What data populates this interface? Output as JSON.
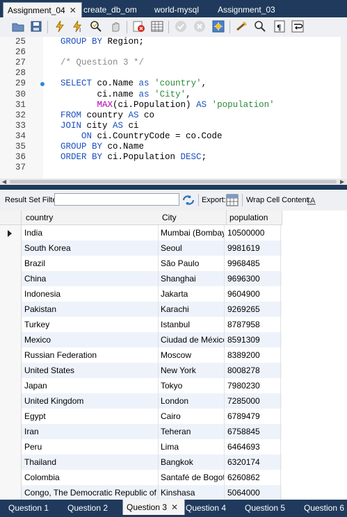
{
  "tabs": [
    {
      "label": "Assignment_04",
      "active": true,
      "closable": true
    },
    {
      "label": "create_db_om"
    },
    {
      "label": "world-mysql"
    },
    {
      "label": "Assignment_03"
    }
  ],
  "toolbar": {
    "icons": [
      "open-folder-icon",
      "save-icon",
      "execute-icon",
      "execute-current-icon",
      "explain-icon",
      "stop-icon",
      "toggle-error-icon",
      "result-grid-icon",
      "commit-icon",
      "rollback-icon",
      "autocommit-icon",
      "beautify-icon",
      "find-icon",
      "invisible-chars-icon",
      "word-wrap-icon"
    ]
  },
  "editor": {
    "lines": [
      {
        "n": "25",
        "tokens": [
          {
            "t": "GROUP BY",
            "c": "kw"
          },
          {
            "t": " Region;"
          }
        ]
      },
      {
        "n": "26",
        "tokens": []
      },
      {
        "n": "27",
        "tokens": [
          {
            "t": "/* Question 3 */",
            "c": "cmt"
          }
        ]
      },
      {
        "n": "28",
        "tokens": []
      },
      {
        "n": "29",
        "marker": true,
        "tokens": [
          {
            "t": "SELECT",
            "c": "kw"
          },
          {
            "t": " co.Name "
          },
          {
            "t": "as",
            "c": "kw"
          },
          {
            "t": " "
          },
          {
            "t": "'country'",
            "c": "str"
          },
          {
            "t": ","
          }
        ]
      },
      {
        "n": "30",
        "tokens": [
          {
            "t": "       ci.name "
          },
          {
            "t": "as",
            "c": "kw"
          },
          {
            "t": " "
          },
          {
            "t": "'City'",
            "c": "str"
          },
          {
            "t": ","
          }
        ]
      },
      {
        "n": "31",
        "tokens": [
          {
            "t": "       "
          },
          {
            "t": "MAX",
            "c": "fn"
          },
          {
            "t": "(ci.Population) "
          },
          {
            "t": "AS",
            "c": "kw"
          },
          {
            "t": " "
          },
          {
            "t": "'population'",
            "c": "str"
          }
        ]
      },
      {
        "n": "32",
        "tokens": [
          {
            "t": "FROM",
            "c": "kw"
          },
          {
            "t": " country "
          },
          {
            "t": "AS",
            "c": "kw"
          },
          {
            "t": " co"
          }
        ]
      },
      {
        "n": "33",
        "tokens": [
          {
            "t": "JOIN",
            "c": "kw"
          },
          {
            "t": " city "
          },
          {
            "t": "AS",
            "c": "kw"
          },
          {
            "t": " ci"
          }
        ]
      },
      {
        "n": "34",
        "tokens": [
          {
            "t": "    "
          },
          {
            "t": "ON",
            "c": "kw"
          },
          {
            "t": " ci.CountryCode = co.Code"
          }
        ]
      },
      {
        "n": "35",
        "tokens": [
          {
            "t": "GROUP BY",
            "c": "kw"
          },
          {
            "t": " co.Name"
          }
        ]
      },
      {
        "n": "36",
        "tokens": [
          {
            "t": "ORDER BY",
            "c": "kw"
          },
          {
            "t": " ci.Population "
          },
          {
            "t": "DESC",
            "c": "kw"
          },
          {
            "t": ";"
          }
        ]
      },
      {
        "n": "37",
        "tokens": []
      }
    ]
  },
  "resultbar": {
    "filter_label": "Result Set Filter:",
    "filter_value": "",
    "export_label": "Export:",
    "wrap_label": "Wrap Cell Content:"
  },
  "grid": {
    "columns": [
      "country",
      "City",
      "population"
    ],
    "rows": [
      [
        "India",
        "Mumbai (Bombay)",
        "10500000"
      ],
      [
        "South Korea",
        "Seoul",
        "9981619"
      ],
      [
        "Brazil",
        "São Paulo",
        "9968485"
      ],
      [
        "China",
        "Shanghai",
        "9696300"
      ],
      [
        "Indonesia",
        "Jakarta",
        "9604900"
      ],
      [
        "Pakistan",
        "Karachi",
        "9269265"
      ],
      [
        "Turkey",
        "Istanbul",
        "8787958"
      ],
      [
        "Mexico",
        "Ciudad de México",
        "8591309"
      ],
      [
        "Russian Federation",
        "Moscow",
        "8389200"
      ],
      [
        "United States",
        "New York",
        "8008278"
      ],
      [
        "Japan",
        "Tokyo",
        "7980230"
      ],
      [
        "United Kingdom",
        "London",
        "7285000"
      ],
      [
        "Egypt",
        "Cairo",
        "6789479"
      ],
      [
        "Iran",
        "Teheran",
        "6758845"
      ],
      [
        "Peru",
        "Lima",
        "6464693"
      ],
      [
        "Thailand",
        "Bangkok",
        "6320174"
      ],
      [
        "Colombia",
        "Santafé de Bogotá",
        "6260862"
      ],
      [
        "Congo, The Democratic Republic of the",
        "Kinshasa",
        "5064000"
      ]
    ]
  },
  "result_tabs": [
    {
      "label": "Question 1"
    },
    {
      "label": "Question 2"
    },
    {
      "label": "Question 3",
      "active": true,
      "closable": true
    },
    {
      "label": "Question 4"
    },
    {
      "label": "Question 5"
    },
    {
      "label": "Question 6"
    }
  ],
  "colors": {
    "tab_bar": "#1f3a5c",
    "keyword": "#1a4fbf",
    "string": "#2e8a3a",
    "comment": "#8a8a8a",
    "function": "#b500b5",
    "row_alt": "#eef3fb"
  }
}
